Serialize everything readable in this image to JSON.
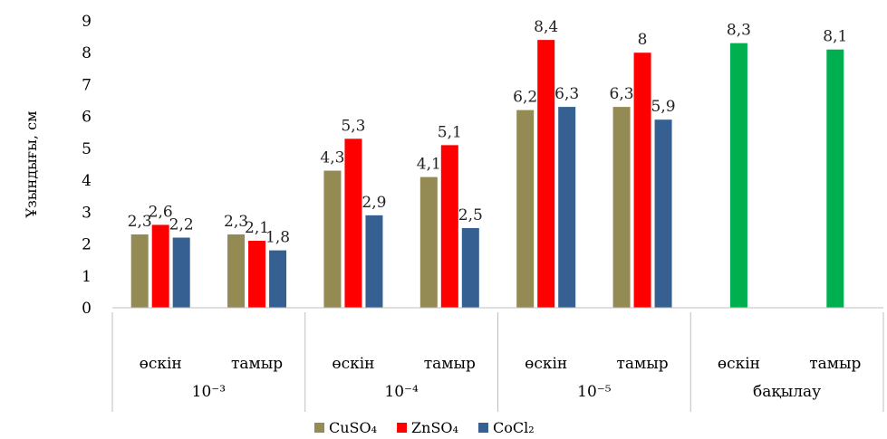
{
  "chart_data": {
    "type": "bar",
    "ylabel": "Ұзындығы, см",
    "ylim": [
      0,
      9
    ],
    "yticks": [
      0,
      1,
      2,
      3,
      4,
      5,
      6,
      7,
      8,
      9
    ],
    "grid": false,
    "legend_position": "bottom",
    "categories": [
      {
        "label": "өскін",
        "group": "10⁻³"
      },
      {
        "label": "тамыр",
        "group": "10⁻³"
      },
      {
        "label": "өскін",
        "group": "10⁻⁴"
      },
      {
        "label": "тамыр",
        "group": "10⁻⁴"
      },
      {
        "label": "өскін",
        "group": "10⁻⁵"
      },
      {
        "label": "тамыр",
        "group": "10⁻⁵"
      },
      {
        "label": "өскін",
        "group": "бақылау"
      },
      {
        "label": "тамыр",
        "group": "бақылау"
      }
    ],
    "groups": [
      "10⁻³",
      "10⁻⁴",
      "10⁻⁵",
      "бақылау"
    ],
    "series": [
      {
        "name": "CuSO₄",
        "color": "#948A54",
        "values": [
          2.3,
          2.3,
          4.3,
          4.1,
          6.2,
          6.3,
          null,
          null
        ],
        "labels": [
          "2,3",
          "2,3",
          "4,3",
          "4,1",
          "6,2",
          "6,3",
          null,
          null
        ]
      },
      {
        "name": "ZnSO₄",
        "color": "#FF0000",
        "values": [
          2.6,
          2.1,
          5.3,
          5.1,
          8.4,
          8.0,
          null,
          null
        ],
        "labels": [
          "2,6",
          "2,1",
          "5,3",
          "5,1",
          "8,4",
          "8",
          null,
          null
        ]
      },
      {
        "name": "CoCl₂",
        "color": "#376092",
        "values": [
          2.2,
          1.8,
          2.9,
          2.5,
          6.3,
          5.9,
          null,
          null
        ],
        "labels": [
          "2,2",
          "1,8",
          "2,9",
          "2,5",
          "6,3",
          "5,9",
          null,
          null
        ]
      }
    ],
    "control": {
      "color": "#00B050",
      "values": [
        8.3,
        8.1
      ],
      "labels": [
        "8,3",
        "8,1"
      ]
    }
  }
}
